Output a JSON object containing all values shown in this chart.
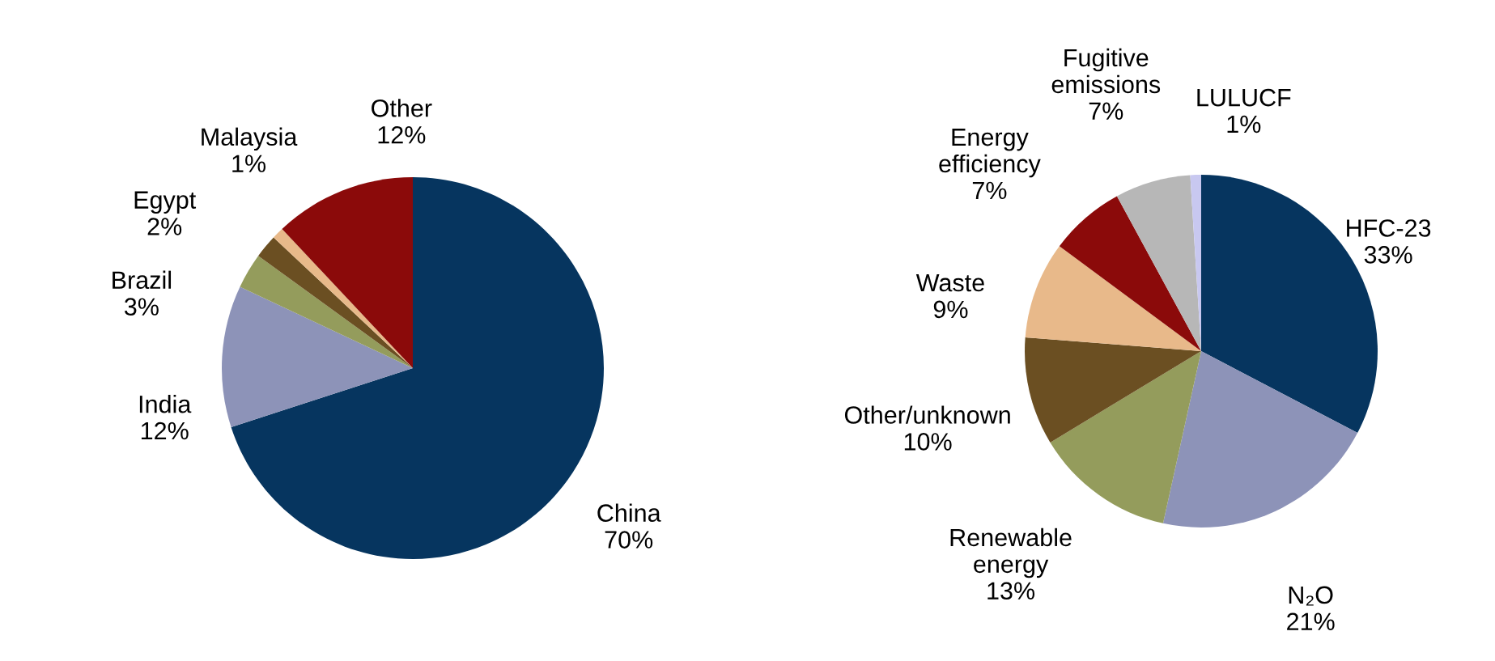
{
  "chart_data": [
    {
      "type": "pie",
      "categories": [
        "China",
        "India",
        "Brazil",
        "Egypt",
        "Malaysia",
        "Other"
      ],
      "values": [
        70,
        12,
        3,
        2,
        1,
        12
      ],
      "value_labels": [
        "70%",
        "12%",
        "3%",
        "2%",
        "1%",
        "12%"
      ],
      "colors": [
        "#06355f",
        "#8d93b8",
        "#949c5c",
        "#6b4f22",
        "#e8b98a",
        "#8b0a0a"
      ]
    },
    {
      "type": "pie",
      "categories": [
        "HFC-23",
        "N₂O",
        "Renewable\nenergy",
        "Other/unknown",
        "Waste",
        "Energy\nefficiency",
        "Fugitive\nemissions",
        "LULUCF"
      ],
      "values": [
        33,
        21,
        13,
        10,
        9,
        7,
        7,
        1
      ],
      "value_labels": [
        "33%",
        "21%",
        "13%",
        "10%",
        "9%",
        "7%",
        "7%",
        "1%"
      ],
      "colors": [
        "#06355f",
        "#8d93b8",
        "#949c5c",
        "#6b4f22",
        "#e8b98a",
        "#8b0a0a",
        "#b7b7b7",
        "#c8c8f0"
      ]
    }
  ]
}
